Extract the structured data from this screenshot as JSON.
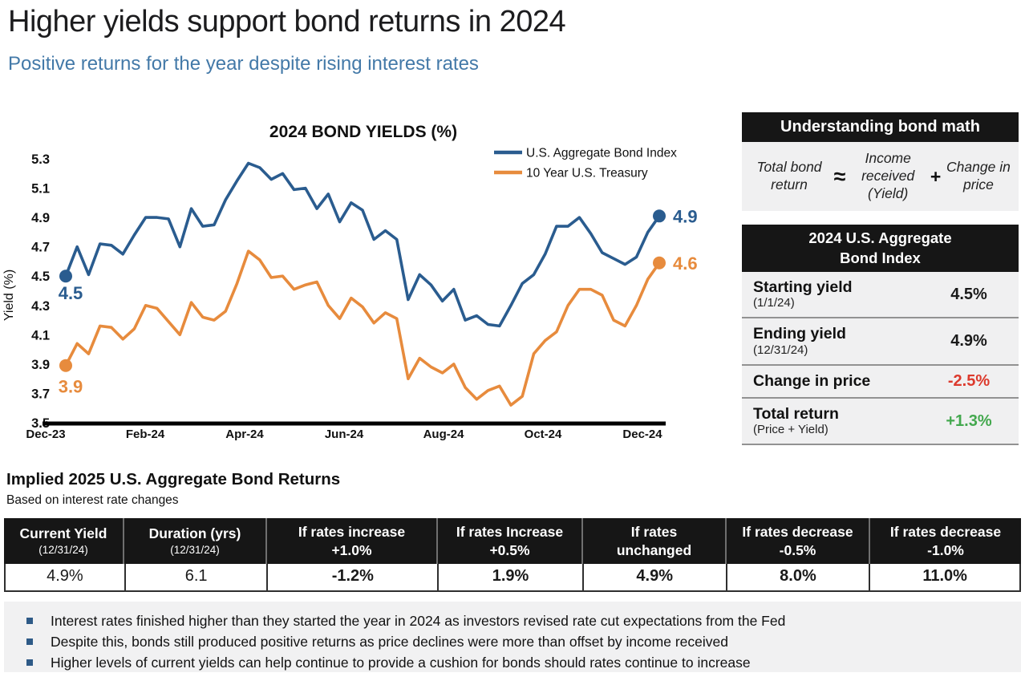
{
  "header": {
    "title": "Higher yields support bond returns in 2024",
    "subtitle": "Positive returns for the year despite rising interest rates"
  },
  "colors": {
    "aggregate_line": "#2a5c8f",
    "treasury_line": "#e78b3d",
    "negative_red": "#dc3a2d",
    "positive_green": "#43a84e",
    "subtitle_blue": "#4379a8",
    "bullet_blue": "#2e5a87",
    "header_black": "#161616",
    "panel_gray": "#f0f0f1"
  },
  "chart_data": {
    "type": "line",
    "title": "2024 BOND YIELDS (%)",
    "ylabel": "Yield (%)",
    "xlabel": "",
    "grid": false,
    "legend_position": "top-right",
    "ylim": [
      3.5,
      5.3
    ],
    "y_ticks": [
      3.5,
      3.7,
      3.9,
      4.1,
      4.3,
      4.5,
      4.7,
      4.9,
      5.1,
      5.3
    ],
    "x_labels": [
      "Dec-23",
      "Feb-24",
      "Apr-24",
      "Jun-24",
      "Aug-24",
      "Oct-24",
      "Dec-24"
    ],
    "x_unit": "weekly",
    "series": [
      {
        "name": "U.S. Aggregate Bond Index",
        "color": "#2a5c8f",
        "start_label": "4.5",
        "end_label": "4.9",
        "values": [
          4.5,
          4.7,
          4.51,
          4.72,
          4.71,
          4.65,
          4.78,
          4.9,
          4.9,
          4.89,
          4.7,
          4.96,
          4.84,
          4.85,
          5.02,
          5.15,
          5.27,
          5.24,
          5.16,
          5.2,
          5.09,
          5.1,
          4.96,
          5.06,
          4.87,
          5.0,
          4.95,
          4.75,
          4.81,
          4.75,
          4.34,
          4.51,
          4.44,
          4.33,
          4.41,
          4.2,
          4.23,
          4.17,
          4.16,
          4.3,
          4.45,
          4.51,
          4.65,
          4.84,
          4.84,
          4.9,
          4.79,
          4.66,
          4.62,
          4.58,
          4.63,
          4.8,
          4.91
        ]
      },
      {
        "name": "10 Year U.S. Treasury",
        "color": "#e78b3d",
        "start_label": "3.9",
        "end_label": "4.6",
        "values": [
          3.89,
          4.04,
          3.97,
          4.16,
          4.15,
          4.07,
          4.14,
          4.3,
          4.28,
          4.19,
          4.1,
          4.32,
          4.22,
          4.2,
          4.26,
          4.45,
          4.67,
          4.61,
          4.49,
          4.5,
          4.41,
          4.44,
          4.46,
          4.3,
          4.21,
          4.35,
          4.29,
          4.18,
          4.25,
          4.21,
          3.8,
          3.94,
          3.88,
          3.84,
          3.9,
          3.74,
          3.66,
          3.72,
          3.75,
          3.62,
          3.68,
          3.97,
          4.06,
          4.12,
          4.3,
          4.41,
          4.41,
          4.37,
          4.2,
          4.16,
          4.3,
          4.48,
          4.59
        ]
      }
    ]
  },
  "bond_math": {
    "header": "Understanding bond math",
    "term_total": "Total bond return",
    "op_approx": "≈",
    "term_income": "Income received (Yield)",
    "op_plus": "+",
    "term_price": "Change in price"
  },
  "summary": {
    "header": "2024 U.S. Aggregate Bond Index",
    "rows": [
      {
        "label": "Starting yield",
        "sub": "(1/1/24)",
        "value": "4.5%",
        "value_color": "#1a1a1a"
      },
      {
        "label": "Ending yield",
        "sub": "(12/31/24)",
        "value": "4.9%",
        "value_color": "#1a1a1a"
      },
      {
        "label": "Change in price",
        "sub": "",
        "value": "-2.5%",
        "value_color": "#dc3a2d"
      },
      {
        "label": "Total return",
        "sub": "(Price + Yield)",
        "value": "+1.3%",
        "value_color": "#43a84e"
      }
    ]
  },
  "implied": {
    "title": "Implied 2025 U.S. Aggregate Bond Returns",
    "subtitle": "Based on interest rate changes",
    "columns": [
      {
        "line1": "Current Yield",
        "line2": "(12/31/24)",
        "sub": true,
        "value": "4.9%",
        "value_style": "black"
      },
      {
        "line1": "Duration (yrs)",
        "line2": "(12/31/24)",
        "sub": true,
        "value": "6.1",
        "value_style": "black"
      },
      {
        "line1": "If rates increase",
        "line2": "+1.0%",
        "sub": false,
        "value": "-1.2%",
        "value_style": "red"
      },
      {
        "line1": "If rates Increase",
        "line2": "+0.5%",
        "sub": false,
        "value": "1.9%",
        "value_style": "green"
      },
      {
        "line1": "If rates",
        "line2": "unchanged",
        "sub": false,
        "value": "4.9%",
        "value_style": "green"
      },
      {
        "line1": "If rates decrease",
        "line2": "-0.5%",
        "sub": false,
        "value": "8.0%",
        "value_style": "green"
      },
      {
        "line1": "If rates decrease",
        "line2": "-1.0%",
        "sub": false,
        "value": "11.0%",
        "value_style": "green"
      }
    ]
  },
  "bullets": [
    "Interest rates finished higher than they started the year in 2024 as investors revised rate cut expectations from the Fed",
    "Despite this, bonds still produced positive returns as price declines were more than offset by income received",
    "Higher levels of current yields can help continue to provide a cushion for bonds should rates continue to increase"
  ]
}
